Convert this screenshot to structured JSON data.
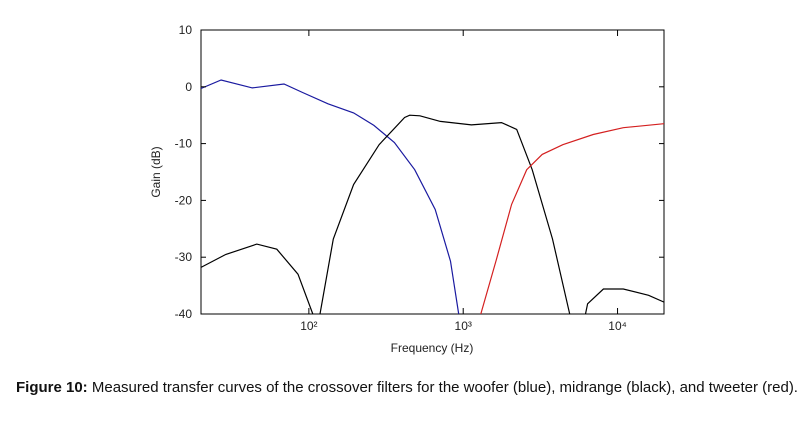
{
  "chart_data": {
    "type": "line",
    "xlabel": "Frequency (Hz)",
    "ylabel": "Gain (dB)",
    "xscale": "log",
    "xlim": [
      20,
      20000
    ],
    "ylim": [
      -40,
      10
    ],
    "xticks": [
      {
        "value": 100,
        "label": "10²"
      },
      {
        "value": 1000,
        "label": "10³"
      },
      {
        "value": 10000,
        "label": "10⁴"
      }
    ],
    "yticks": [
      10,
      0,
      -10,
      -20,
      -30,
      -40
    ],
    "grid": false,
    "series": [
      {
        "color": "#1a1aa0",
        "x": [
          20,
          27,
          43,
          69,
          91,
          133,
          195,
          264,
          358,
          485,
          658,
          827,
          935
        ],
        "values": [
          -0.3,
          1.2,
          -0.2,
          0.5,
          -1,
          -3,
          -4.6,
          -6.8,
          -9.8,
          -14.6,
          -21.6,
          -30.7,
          -40
        ]
      },
      {
        "color": "#000000",
        "x": [
          20,
          29,
          46,
          62,
          85,
          106,
          null,
          118,
          144,
          195,
          285,
          417,
          450,
          524,
          710,
          1130,
          1770,
          2220,
          2800,
          3790,
          4900,
          null,
          6200,
          6400,
          8100,
          10900,
          15900,
          20000
        ],
        "values": [
          -31.8,
          -29.5,
          -27.7,
          -28.6,
          -33,
          -40,
          null,
          -40,
          -26.8,
          -17.2,
          -10.2,
          -5.4,
          -5,
          -5.1,
          -6.1,
          -6.7,
          -6.3,
          -7.5,
          -14.6,
          -26.8,
          -40,
          null,
          -40,
          -38.2,
          -35.6,
          -35.6,
          -36.7,
          -37.9
        ]
      },
      {
        "color": "#d42020",
        "x": [
          1300,
          1640,
          2060,
          2580,
          3250,
          4420,
          6950,
          10900,
          20000
        ],
        "values": [
          -40,
          -30.4,
          -20.7,
          -14.6,
          -11.9,
          -10.2,
          -8.4,
          -7.2,
          -6.5
        ]
      }
    ]
  },
  "caption": {
    "label": "Figure 10:",
    "text": " Measured transfer curves of the crossover filters for the woofer (blue), midrange (black), and tweeter (red)."
  }
}
